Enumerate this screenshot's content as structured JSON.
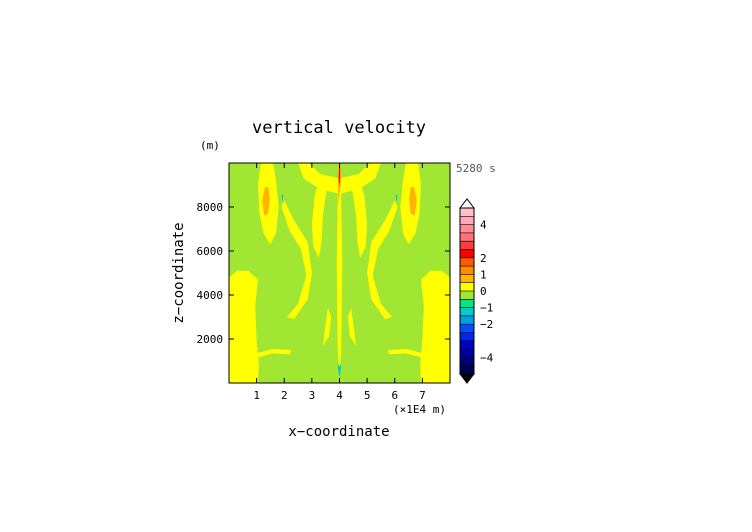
{
  "chart_data": {
    "type": "heatmap",
    "title": "vertical velocity",
    "xlabel": "x−coordinate",
    "ylabel": "z−coordinate",
    "x_unit": "(×1E4 m)",
    "y_unit": "(m)",
    "time_label": "5280 s",
    "xlim": [
      0,
      8
    ],
    "ylim": [
      0,
      10000
    ],
    "x_ticks": [
      1,
      2,
      3,
      4,
      5,
      6,
      7
    ],
    "y_ticks": [
      2000,
      4000,
      6000,
      8000
    ],
    "colorbar": {
      "labels": [
        "4",
        "2",
        "1",
        "0",
        "−1",
        "−2",
        "−4"
      ],
      "label_values": [
        4,
        2,
        1,
        0,
        -1,
        -2,
        -4
      ],
      "levels": [
        {
          "lo": 4.5,
          "hi": 5,
          "color": "#ffc0c8"
        },
        {
          "lo": 4,
          "hi": 4.5,
          "color": "#ffaab4"
        },
        {
          "lo": 3.5,
          "hi": 4,
          "color": "#ff8c94"
        },
        {
          "lo": 3,
          "hi": 3.5,
          "color": "#ff7078"
        },
        {
          "lo": 2.5,
          "hi": 3,
          "color": "#ff3c3c"
        },
        {
          "lo": 2,
          "hi": 2.5,
          "color": "#ff0000"
        },
        {
          "lo": 1.5,
          "hi": 2,
          "color": "#ff5a00"
        },
        {
          "lo": 1,
          "hi": 1.5,
          "color": "#ff8c00"
        },
        {
          "lo": 0.5,
          "hi": 1,
          "color": "#ffb400"
        },
        {
          "lo": 0,
          "hi": 0.5,
          "color": "#ffff00"
        },
        {
          "lo": -0.5,
          "hi": 0,
          "color": "#a0e632"
        },
        {
          "lo": -1,
          "hi": -0.5,
          "color": "#00e682"
        },
        {
          "lo": -1.5,
          "hi": -1,
          "color": "#00cccc"
        },
        {
          "lo": -2,
          "hi": -1.5,
          "color": "#00a0e6"
        },
        {
          "lo": -2.5,
          "hi": -2,
          "color": "#0050ff"
        },
        {
          "lo": -3,
          "hi": -2.5,
          "color": "#0028e6"
        },
        {
          "lo": -3.5,
          "hi": -3,
          "color": "#0000c8"
        },
        {
          "lo": -4,
          "hi": -3.5,
          "color": "#0000a0"
        },
        {
          "lo": -4.5,
          "hi": -4,
          "color": "#000078"
        },
        {
          "lo": -5,
          "hi": -4.5,
          "color": "#000050"
        }
      ],
      "over_color": "#ffffff",
      "under_color": "#000000"
    },
    "field_colors": {
      "background": "#a0e632",
      "positive": "#ffff00",
      "moderate": "#ffb400",
      "strong": "#ff0000",
      "negative": "#00cccc"
    },
    "regions": [
      {
        "level": "positive",
        "polygon": [
          [
            0,
            0
          ],
          [
            1.05,
            0
          ],
          [
            1.08,
            0.8
          ],
          [
            1.0,
            2.0
          ],
          [
            0.95,
            3.5
          ],
          [
            1.05,
            4.7
          ],
          [
            0.7,
            5.1
          ],
          [
            0.3,
            5.1
          ],
          [
            0,
            4.8
          ]
        ]
      },
      {
        "level": "positive",
        "polygon": [
          [
            8,
            0
          ],
          [
            6.95,
            0
          ],
          [
            6.92,
            0.8
          ],
          [
            7.0,
            2.0
          ],
          [
            7.05,
            3.5
          ],
          [
            6.95,
            4.7
          ],
          [
            7.3,
            5.1
          ],
          [
            7.7,
            5.1
          ],
          [
            8,
            4.8
          ]
        ]
      },
      {
        "level": "positive",
        "polygon": [
          [
            1.15,
            10
          ],
          [
            1.05,
            9.0
          ],
          [
            1.1,
            7.7
          ],
          [
            1.25,
            6.8
          ],
          [
            1.5,
            6.3
          ],
          [
            1.7,
            6.8
          ],
          [
            1.8,
            8.0
          ],
          [
            1.7,
            9.2
          ],
          [
            1.6,
            10
          ]
        ]
      },
      {
        "level": "positive",
        "polygon": [
          [
            6.85,
            10
          ],
          [
            6.95,
            9.0
          ],
          [
            6.9,
            7.7
          ],
          [
            6.75,
            6.8
          ],
          [
            6.5,
            6.3
          ],
          [
            6.3,
            6.8
          ],
          [
            6.2,
            8.0
          ],
          [
            6.3,
            9.2
          ],
          [
            6.4,
            10
          ]
        ]
      },
      {
        "level": "positive",
        "polygon": [
          [
            2.1,
            3.0
          ],
          [
            2.5,
            3.6
          ],
          [
            2.8,
            4.9
          ],
          [
            2.6,
            6.1
          ],
          [
            2.2,
            6.9
          ],
          [
            1.9,
            8.0
          ],
          [
            2.0,
            8.3
          ],
          [
            2.35,
            7.4
          ],
          [
            2.85,
            6.4
          ],
          [
            3.0,
            5.0
          ],
          [
            2.85,
            3.8
          ],
          [
            2.35,
            2.9
          ]
        ]
      },
      {
        "level": "positive",
        "polygon": [
          [
            5.9,
            3.0
          ],
          [
            5.5,
            3.6
          ],
          [
            5.2,
            4.9
          ],
          [
            5.4,
            6.1
          ],
          [
            5.8,
            6.9
          ],
          [
            6.1,
            8.0
          ],
          [
            6.0,
            8.3
          ],
          [
            5.65,
            7.4
          ],
          [
            5.15,
            6.4
          ],
          [
            5.0,
            5.0
          ],
          [
            5.15,
            3.8
          ],
          [
            5.65,
            2.9
          ]
        ]
      },
      {
        "level": "positive",
        "polygon": [
          [
            2.5,
            10
          ],
          [
            2.7,
            9.3
          ],
          [
            3.3,
            8.8
          ],
          [
            4.0,
            8.6
          ],
          [
            4.7,
            8.8
          ],
          [
            5.3,
            9.3
          ],
          [
            5.5,
            10
          ],
          [
            5.1,
            10
          ],
          [
            4.7,
            9.5
          ],
          [
            4.0,
            9.3
          ],
          [
            3.3,
            9.5
          ],
          [
            2.9,
            10
          ]
        ]
      },
      {
        "level": "positive",
        "polygon": [
          [
            3.3,
            9.4
          ],
          [
            3.1,
            8.5
          ],
          [
            3.0,
            7.2
          ],
          [
            3.05,
            6.2
          ],
          [
            3.25,
            5.7
          ],
          [
            3.35,
            6.4
          ],
          [
            3.4,
            7.6
          ],
          [
            3.55,
            8.9
          ]
        ]
      },
      {
        "level": "positive",
        "polygon": [
          [
            4.7,
            9.4
          ],
          [
            4.9,
            8.5
          ],
          [
            5.0,
            7.2
          ],
          [
            4.95,
            6.2
          ],
          [
            4.75,
            5.7
          ],
          [
            4.65,
            6.4
          ],
          [
            4.6,
            7.6
          ],
          [
            4.45,
            8.9
          ]
        ]
      },
      {
        "level": "positive",
        "polygon": [
          [
            3.4,
            1.7
          ],
          [
            3.5,
            2.7
          ],
          [
            3.58,
            3.4
          ],
          [
            3.7,
            3.0
          ],
          [
            3.62,
            2.1
          ]
        ]
      },
      {
        "level": "positive",
        "polygon": [
          [
            4.6,
            1.7
          ],
          [
            4.5,
            2.7
          ],
          [
            4.42,
            3.4
          ],
          [
            4.3,
            3.0
          ],
          [
            4.38,
            2.1
          ]
        ]
      },
      {
        "level": "positive",
        "polygon": [
          [
            1.0,
            1.15
          ],
          [
            1.6,
            1.35
          ],
          [
            2.2,
            1.3
          ],
          [
            2.25,
            1.5
          ],
          [
            1.6,
            1.55
          ],
          [
            1.0,
            1.35
          ]
        ]
      },
      {
        "level": "positive",
        "polygon": [
          [
            7.0,
            1.15
          ],
          [
            6.4,
            1.35
          ],
          [
            5.8,
            1.3
          ],
          [
            5.75,
            1.5
          ],
          [
            6.4,
            1.55
          ],
          [
            7.0,
            1.35
          ]
        ]
      },
      {
        "level": "positive",
        "polygon": [
          [
            3.96,
            9.9
          ],
          [
            3.9,
            5.5
          ],
          [
            3.94,
            1.5
          ],
          [
            4.0,
            0.2
          ],
          [
            4.06,
            1.5
          ],
          [
            4.1,
            5.5
          ],
          [
            4.04,
            9.9
          ]
        ]
      },
      {
        "level": "moderate",
        "polygon": [
          [
            1.3,
            8.9
          ],
          [
            1.2,
            8.3
          ],
          [
            1.28,
            7.6
          ],
          [
            1.42,
            7.7
          ],
          [
            1.48,
            8.4
          ],
          [
            1.42,
            8.9
          ]
        ]
      },
      {
        "level": "moderate",
        "polygon": [
          [
            6.7,
            8.9
          ],
          [
            6.8,
            8.3
          ],
          [
            6.72,
            7.6
          ],
          [
            6.58,
            7.7
          ],
          [
            6.52,
            8.4
          ],
          [
            6.58,
            8.9
          ]
        ]
      },
      {
        "level": "moderate",
        "polygon": [
          [
            3.96,
            9.9
          ],
          [
            3.94,
            9.0
          ],
          [
            3.98,
            8.1
          ],
          [
            4.04,
            9.0
          ],
          [
            4.04,
            9.9
          ]
        ]
      },
      {
        "level": "strong",
        "polygon": [
          [
            3.98,
            9.8
          ],
          [
            3.97,
            9.3
          ],
          [
            4.0,
            8.9
          ],
          [
            4.03,
            9.3
          ],
          [
            4.02,
            9.8
          ]
        ]
      },
      {
        "level": "negative",
        "polygon": [
          [
            3.94,
            0.9
          ],
          [
            3.96,
            0.5
          ],
          [
            4.0,
            0.25
          ],
          [
            4.04,
            0.5
          ],
          [
            4.06,
            0.9
          ],
          [
            4.0,
            0.75
          ]
        ]
      },
      {
        "level": "negative",
        "polygon": [
          [
            1.9,
            8.55
          ],
          [
            1.93,
            8.2
          ],
          [
            1.97,
            8.55
          ]
        ]
      },
      {
        "level": "negative",
        "polygon": [
          [
            6.1,
            8.55
          ],
          [
            6.07,
            8.2
          ],
          [
            6.03,
            8.55
          ]
        ]
      }
    ]
  }
}
